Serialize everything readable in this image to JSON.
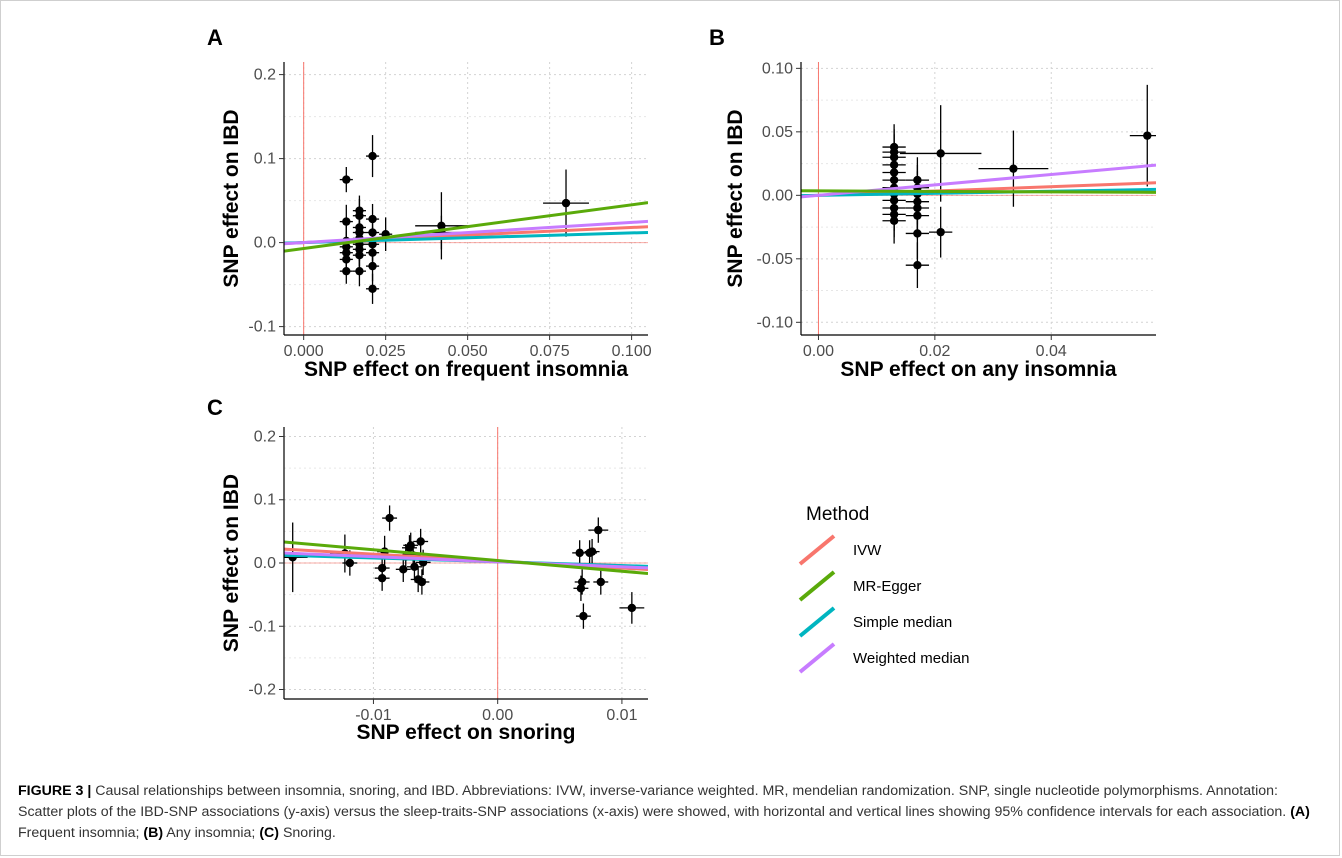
{
  "chart_data": [
    {
      "type": "scatter",
      "panel": "A",
      "xlabel": "SNP effect on frequent insomnia",
      "ylabel": "SNP effect on IBD",
      "xlim": [
        -0.006,
        0.105
      ],
      "ylim": [
        -0.11,
        0.215
      ],
      "xticks": [
        0.0,
        0.025,
        0.05,
        0.075,
        0.1
      ],
      "xtick_labels": [
        "0.000",
        "0.025",
        "0.050",
        "0.075",
        "0.100"
      ],
      "yticks": [
        -0.1,
        0.0,
        0.1,
        0.2
      ],
      "ytick_labels": [
        "-0.1",
        "0.0",
        "0.1",
        "0.2"
      ],
      "ref_x": 0,
      "ref_y": 0,
      "points": [
        {
          "x": 0.013,
          "y": 0.075,
          "xe": 0.002,
          "ye": 0.015
        },
        {
          "x": 0.021,
          "y": 0.103,
          "xe": 0.002,
          "ye": 0.025
        },
        {
          "x": 0.013,
          "y": 0.025,
          "xe": 0.002,
          "ye": 0.02
        },
        {
          "x": 0.013,
          "y": 0.002,
          "xe": 0.002,
          "ye": 0.018
        },
        {
          "x": 0.013,
          "y": -0.005,
          "xe": 0.002,
          "ye": 0.018
        },
        {
          "x": 0.013,
          "y": -0.012,
          "xe": 0.002,
          "ye": 0.018
        },
        {
          "x": 0.013,
          "y": -0.02,
          "xe": 0.002,
          "ye": 0.018
        },
        {
          "x": 0.013,
          "y": -0.034,
          "xe": 0.002,
          "ye": 0.015
        },
        {
          "x": 0.017,
          "y": 0.038,
          "xe": 0.002,
          "ye": 0.018
        },
        {
          "x": 0.017,
          "y": 0.032,
          "xe": 0.002,
          "ye": 0.02
        },
        {
          "x": 0.017,
          "y": 0.018,
          "xe": 0.002,
          "ye": 0.02
        },
        {
          "x": 0.017,
          "y": 0.012,
          "xe": 0.002,
          "ye": 0.02
        },
        {
          "x": 0.017,
          "y": 0.005,
          "xe": 0.002,
          "ye": 0.02
        },
        {
          "x": 0.017,
          "y": -0.002,
          "xe": 0.002,
          "ye": 0.02
        },
        {
          "x": 0.017,
          "y": -0.008,
          "xe": 0.002,
          "ye": 0.02
        },
        {
          "x": 0.017,
          "y": -0.015,
          "xe": 0.002,
          "ye": 0.02
        },
        {
          "x": 0.017,
          "y": -0.034,
          "xe": 0.002,
          "ye": 0.018
        },
        {
          "x": 0.021,
          "y": 0.028,
          "xe": 0.002,
          "ye": 0.018
        },
        {
          "x": 0.021,
          "y": 0.012,
          "xe": 0.002,
          "ye": 0.02
        },
        {
          "x": 0.021,
          "y": -0.002,
          "xe": 0.002,
          "ye": 0.02
        },
        {
          "x": 0.021,
          "y": -0.012,
          "xe": 0.002,
          "ye": 0.02
        },
        {
          "x": 0.021,
          "y": -0.028,
          "xe": 0.002,
          "ye": 0.018
        },
        {
          "x": 0.021,
          "y": -0.055,
          "xe": 0.002,
          "ye": 0.018
        },
        {
          "x": 0.025,
          "y": 0.01,
          "xe": 0.002,
          "ye": 0.02
        },
        {
          "x": 0.042,
          "y": 0.02,
          "xe": 0.008,
          "ye": 0.04
        },
        {
          "x": 0.042,
          "y": 0.012,
          "xe": 0.008,
          "ye": 0.02
        },
        {
          "x": 0.08,
          "y": 0.047,
          "xe": 0.007,
          "ye": 0.04
        }
      ],
      "lines": [
        {
          "method": "IVW",
          "intercept": 0,
          "slope": 0.18
        },
        {
          "method": "MR-Egger",
          "intercept": -0.007,
          "slope": 0.52
        },
        {
          "method": "Simple median",
          "intercept": 0,
          "slope": 0.115
        },
        {
          "method": "Weighted median",
          "intercept": 0,
          "slope": 0.24
        }
      ]
    },
    {
      "type": "scatter",
      "panel": "B",
      "xlabel": "SNP effect on any insomnia",
      "ylabel": "SNP effect on IBD",
      "xlim": [
        -0.003,
        0.058
      ],
      "ylim": [
        -0.11,
        0.105
      ],
      "xticks": [
        0.0,
        0.02,
        0.04
      ],
      "xtick_labels": [
        "0.00",
        "0.02",
        "0.04"
      ],
      "yticks": [
        -0.1,
        -0.05,
        0.0,
        0.05,
        0.1
      ],
      "ytick_labels": [
        "-0.10",
        "-0.05",
        "0.00",
        "0.05",
        "0.10"
      ],
      "ref_x": 0,
      "ref_y": 0,
      "points": [
        {
          "x": 0.013,
          "y": 0.038,
          "xe": 0.002,
          "ye": 0.018
        },
        {
          "x": 0.013,
          "y": 0.034,
          "xe": 0.002,
          "ye": 0.018
        },
        {
          "x": 0.013,
          "y": 0.03,
          "xe": 0.002,
          "ye": 0.018
        },
        {
          "x": 0.013,
          "y": 0.024,
          "xe": 0.002,
          "ye": 0.018
        },
        {
          "x": 0.013,
          "y": 0.018,
          "xe": 0.002,
          "ye": 0.018
        },
        {
          "x": 0.013,
          "y": 0.012,
          "xe": 0.002,
          "ye": 0.018
        },
        {
          "x": 0.013,
          "y": 0.006,
          "xe": 0.002,
          "ye": 0.018
        },
        {
          "x": 0.013,
          "y": 0.001,
          "xe": 0.002,
          "ye": 0.018
        },
        {
          "x": 0.013,
          "y": -0.004,
          "xe": 0.002,
          "ye": 0.018
        },
        {
          "x": 0.013,
          "y": -0.01,
          "xe": 0.002,
          "ye": 0.018
        },
        {
          "x": 0.013,
          "y": -0.015,
          "xe": 0.002,
          "ye": 0.018
        },
        {
          "x": 0.013,
          "y": -0.02,
          "xe": 0.002,
          "ye": 0.018
        },
        {
          "x": 0.017,
          "y": 0.012,
          "xe": 0.002,
          "ye": 0.018
        },
        {
          "x": 0.017,
          "y": 0.006,
          "xe": 0.002,
          "ye": 0.018
        },
        {
          "x": 0.017,
          "y": 0.001,
          "xe": 0.002,
          "ye": 0.018
        },
        {
          "x": 0.017,
          "y": -0.005,
          "xe": 0.002,
          "ye": 0.018
        },
        {
          "x": 0.017,
          "y": -0.01,
          "xe": 0.002,
          "ye": 0.018
        },
        {
          "x": 0.017,
          "y": -0.016,
          "xe": 0.002,
          "ye": 0.018
        },
        {
          "x": 0.017,
          "y": -0.03,
          "xe": 0.002,
          "ye": 0.02
        },
        {
          "x": 0.017,
          "y": -0.055,
          "xe": 0.002,
          "ye": 0.018
        },
        {
          "x": 0.021,
          "y": 0.033,
          "xe": 0.007,
          "ye": 0.038
        },
        {
          "x": 0.021,
          "y": -0.029,
          "xe": 0.002,
          "ye": 0.02
        },
        {
          "x": 0.0335,
          "y": 0.021,
          "xe": 0.006,
          "ye": 0.03
        },
        {
          "x": 0.0565,
          "y": 0.047,
          "xe": 0.003,
          "ye": 0.04
        }
      ],
      "lines": [
        {
          "method": "IVW",
          "intercept": 0,
          "slope": 0.17
        },
        {
          "method": "MR-Egger",
          "intercept": 0.0035,
          "slope": -0.02
        },
        {
          "method": "Simple median",
          "intercept": 0,
          "slope": 0.08
        },
        {
          "method": "Weighted median",
          "intercept": 0,
          "slope": 0.41
        }
      ]
    },
    {
      "type": "scatter",
      "panel": "C",
      "xlabel": "SNP effect on snoring",
      "ylabel": "SNP effect on IBD",
      "xlim": [
        -0.0172,
        0.0121
      ],
      "ylim": [
        -0.215,
        0.215
      ],
      "xticks": [
        -0.01,
        0.0,
        0.01
      ],
      "xtick_labels": [
        "-0.01",
        "0.00",
        "0.01"
      ],
      "yticks": [
        -0.2,
        -0.1,
        0.0,
        0.1,
        0.2
      ],
      "ytick_labels": [
        "-0.2",
        "-0.1",
        "0.0",
        "0.1",
        "0.2"
      ],
      "ref_x": 0,
      "ref_y": 0,
      "points": [
        {
          "x": -0.0165,
          "y": 0.009,
          "xe": 0.0012,
          "ye": 0.055
        },
        {
          "x": -0.0123,
          "y": 0.015,
          "xe": 0.0012,
          "ye": 0.03
        },
        {
          "x": -0.0119,
          "y": 0.0,
          "xe": 0.0006,
          "ye": 0.02
        },
        {
          "x": -0.0091,
          "y": 0.018,
          "xe": 0.0006,
          "ye": 0.025
        },
        {
          "x": -0.0093,
          "y": -0.008,
          "xe": 0.0006,
          "ye": 0.02
        },
        {
          "x": -0.0093,
          "y": -0.024,
          "xe": 0.0006,
          "ye": 0.02
        },
        {
          "x": -0.0087,
          "y": 0.071,
          "xe": 0.0006,
          "ye": 0.02
        },
        {
          "x": -0.0076,
          "y": -0.01,
          "xe": 0.0006,
          "ye": 0.02
        },
        {
          "x": -0.0074,
          "y": 0.01,
          "xe": 0.0006,
          "ye": 0.02
        },
        {
          "x": -0.0071,
          "y": 0.024,
          "xe": 0.0006,
          "ye": 0.02
        },
        {
          "x": -0.007,
          "y": 0.028,
          "xe": 0.0006,
          "ye": 0.02
        },
        {
          "x": -0.0068,
          "y": 0.012,
          "xe": 0.0006,
          "ye": 0.02
        },
        {
          "x": -0.0067,
          "y": -0.006,
          "xe": 0.0006,
          "ye": 0.02
        },
        {
          "x": -0.0064,
          "y": -0.026,
          "xe": 0.0006,
          "ye": 0.02
        },
        {
          "x": -0.0062,
          "y": 0.034,
          "xe": 0.0006,
          "ye": 0.02
        },
        {
          "x": -0.0061,
          "y": -0.03,
          "xe": 0.0006,
          "ye": 0.02
        },
        {
          "x": -0.006,
          "y": 0.001,
          "xe": 0.0006,
          "ye": 0.02
        },
        {
          "x": 0.0066,
          "y": 0.016,
          "xe": 0.0006,
          "ye": 0.02
        },
        {
          "x": 0.0067,
          "y": -0.04,
          "xe": 0.0006,
          "ye": 0.02
        },
        {
          "x": 0.0068,
          "y": -0.03,
          "xe": 0.0006,
          "ye": 0.02
        },
        {
          "x": 0.0069,
          "y": -0.084,
          "xe": 0.0006,
          "ye": 0.02
        },
        {
          "x": 0.0074,
          "y": 0.016,
          "xe": 0.0006,
          "ye": 0.02
        },
        {
          "x": 0.0076,
          "y": 0.018,
          "xe": 0.0006,
          "ye": 0.02
        },
        {
          "x": 0.0081,
          "y": 0.052,
          "xe": 0.0008,
          "ye": 0.02
        },
        {
          "x": 0.0083,
          "y": -0.03,
          "xe": 0.0006,
          "ye": 0.02
        },
        {
          "x": 0.0108,
          "y": -0.071,
          "xe": 0.001,
          "ye": 0.025
        }
      ],
      "lines": [
        {
          "method": "IVW",
          "intercept": 0.003,
          "slope": -1.1
        },
        {
          "method": "MR-Egger",
          "intercept": 0.004,
          "slope": -1.7
        },
        {
          "method": "Simple median",
          "intercept": 0.002,
          "slope": -0.6
        },
        {
          "method": "Weighted median",
          "intercept": 0.002,
          "slope": -0.8
        }
      ]
    }
  ],
  "legend": {
    "title": "Method",
    "items": [
      {
        "label": "IVW",
        "color": "#f8766d"
      },
      {
        "label": "MR-Egger",
        "color": "#5aaa0a"
      },
      {
        "label": "Simple median",
        "color": "#00b5c0"
      },
      {
        "label": "Weighted median",
        "color": "#c77cff"
      }
    ]
  },
  "colors": {
    "ref_line": "#f8766d",
    "grid": "#d3d3d3",
    "point": "#000000"
  },
  "caption": {
    "label": "FIGURE 3 |",
    "text1": " Causal relationships between insomnia, snoring, and IBD. Abbreviations: IVW, inverse-variance weighted. MR, mendelian randomization. SNP, single nucleotide polymorphisms. Annotation: Scatter plots of the IBD-SNP associations (y-axis) versus the sleep-traits-SNP associations (x-axis) were showed, with horizontal and vertical lines showing 95% confidence intervals for each association. ",
    "a_label": "(A)",
    "a_text": " Frequent insomnia; ",
    "b_label": "(B)",
    "b_text": " Any insomnia; ",
    "c_label": "(C)",
    "c_text": " Snoring."
  }
}
